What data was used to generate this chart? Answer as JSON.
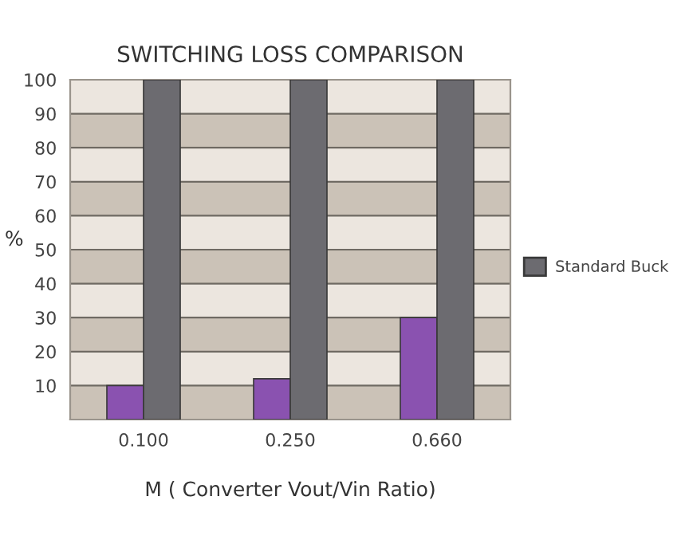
{
  "chart_data": {
    "type": "bar",
    "title": "SWITCHING LOSS COMPARISON",
    "xlabel": "M ( Converter Vout/Vin Ratio)",
    "ylabel": "%",
    "categories": [
      "0.100",
      "0.250",
      "0.660"
    ],
    "series": [
      {
        "color": "#8a52b0",
        "values": [
          10,
          12,
          30
        ]
      },
      {
        "name": "Standard Buck",
        "color": "#6c6b70",
        "values": [
          100,
          100,
          100
        ]
      }
    ],
    "ylim": [
      0,
      100
    ],
    "yticks": [
      10,
      20,
      30,
      40,
      50,
      60,
      70,
      80,
      90,
      100
    ],
    "grid": "y",
    "legend": "right",
    "bands": [
      {
        "axis": "y",
        "from": 0,
        "to": 10,
        "color": "#cbc2b7"
      },
      {
        "axis": "y",
        "from": 20,
        "to": 30,
        "color": "#cbc2b7"
      },
      {
        "axis": "y",
        "from": 40,
        "to": 50,
        "color": "#cbc2b7"
      },
      {
        "axis": "y",
        "from": 60,
        "to": 70,
        "color": "#cbc2b7"
      },
      {
        "axis": "y",
        "from": 80,
        "to": 90,
        "color": "#cbc2b7"
      }
    ]
  }
}
